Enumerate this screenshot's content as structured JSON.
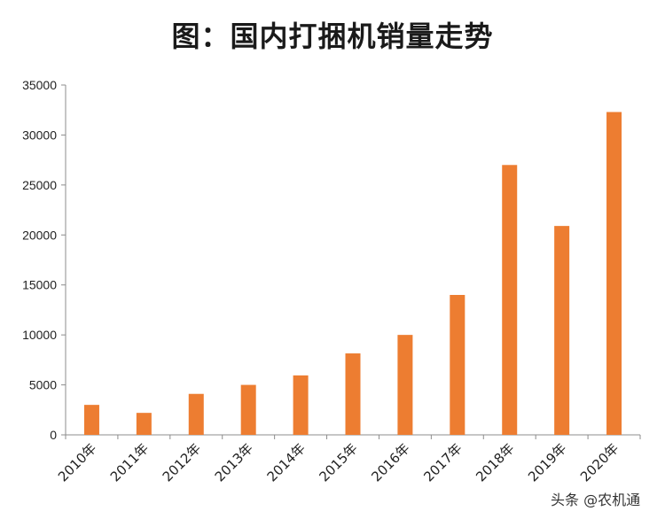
{
  "chart_data": {
    "type": "bar",
    "title": "图：国内打捆机销量走势",
    "categories": [
      "2010年",
      "2011年",
      "2012年",
      "2013年",
      "2014年",
      "2015年",
      "2016年",
      "2017年",
      "2018年",
      "2019年",
      "2020年"
    ],
    "values": [
      3000,
      2200,
      4100,
      5000,
      5950,
      8150,
      10000,
      14000,
      27000,
      20900,
      32300
    ],
    "ylim": [
      0,
      35000
    ],
    "yticks": [
      0,
      5000,
      10000,
      15000,
      20000,
      25000,
      30000,
      35000
    ],
    "xlabel": "",
    "ylabel": "",
    "grid": false,
    "bar_color": "#ED7D31",
    "axis_color": "#8C8C8C"
  },
  "watermark": "头条 @农机通"
}
